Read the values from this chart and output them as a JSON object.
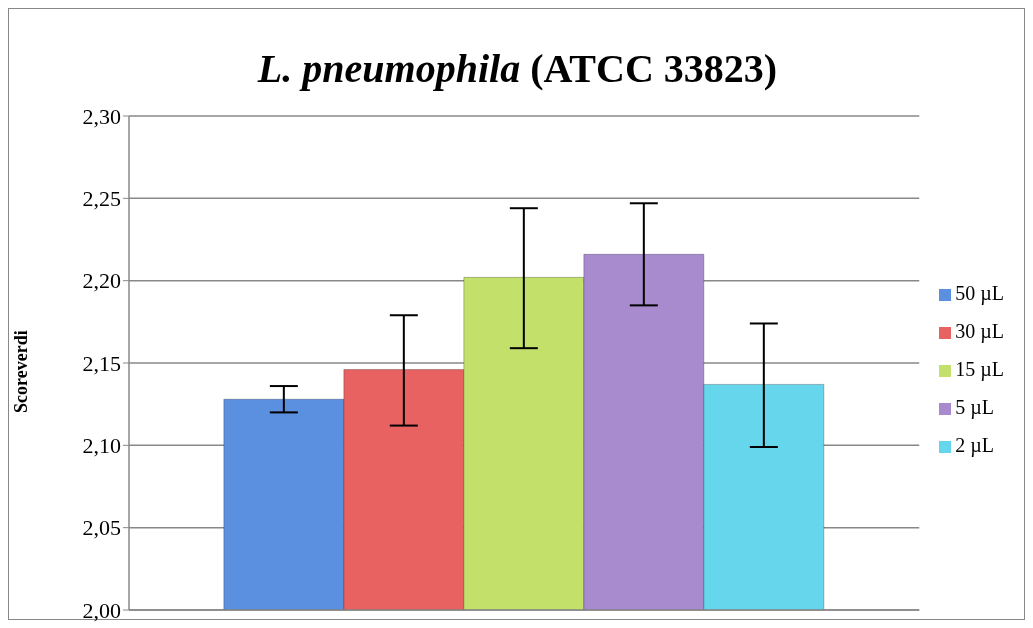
{
  "chart_data": {
    "type": "bar",
    "title": "L. pneumophila (ATCC 33823)",
    "ylabel": "Scoreverdi",
    "categories": [
      null
    ],
    "series": [
      {
        "name": "50 µL",
        "color": "#5b8fe0",
        "values": [
          2.128
        ],
        "errors": [
          [
            2.12,
            2.136
          ]
        ]
      },
      {
        "name": "30 µL",
        "color": "#e86262",
        "values": [
          2.146
        ],
        "errors": [
          [
            2.112,
            2.179
          ]
        ]
      },
      {
        "name": "15 µL",
        "color": "#c2e06a",
        "values": [
          2.202
        ],
        "errors": [
          [
            2.159,
            2.244
          ]
        ]
      },
      {
        "name": "5 µL",
        "color": "#a88acf",
        "values": [
          2.216
        ],
        "errors": [
          [
            2.185,
            2.247
          ]
        ]
      },
      {
        "name": "2 µL",
        "color": "#66d6ec",
        "values": [
          2.137
        ],
        "errors": [
          [
            2.099,
            2.174
          ]
        ]
      }
    ],
    "ylim": [
      2.0,
      2.3
    ],
    "yticks": [
      {
        "value": 2.0,
        "label": "2,00"
      },
      {
        "value": 2.05,
        "label": "2,05"
      },
      {
        "value": 2.1,
        "label": "2,10"
      },
      {
        "value": 2.15,
        "label": "2,15"
      },
      {
        "value": 2.2,
        "label": "2,20"
      },
      {
        "value": 2.25,
        "label": "2,25"
      },
      {
        "value": 2.3,
        "label": "2,30"
      }
    ],
    "grid": "y",
    "legend": "right"
  }
}
